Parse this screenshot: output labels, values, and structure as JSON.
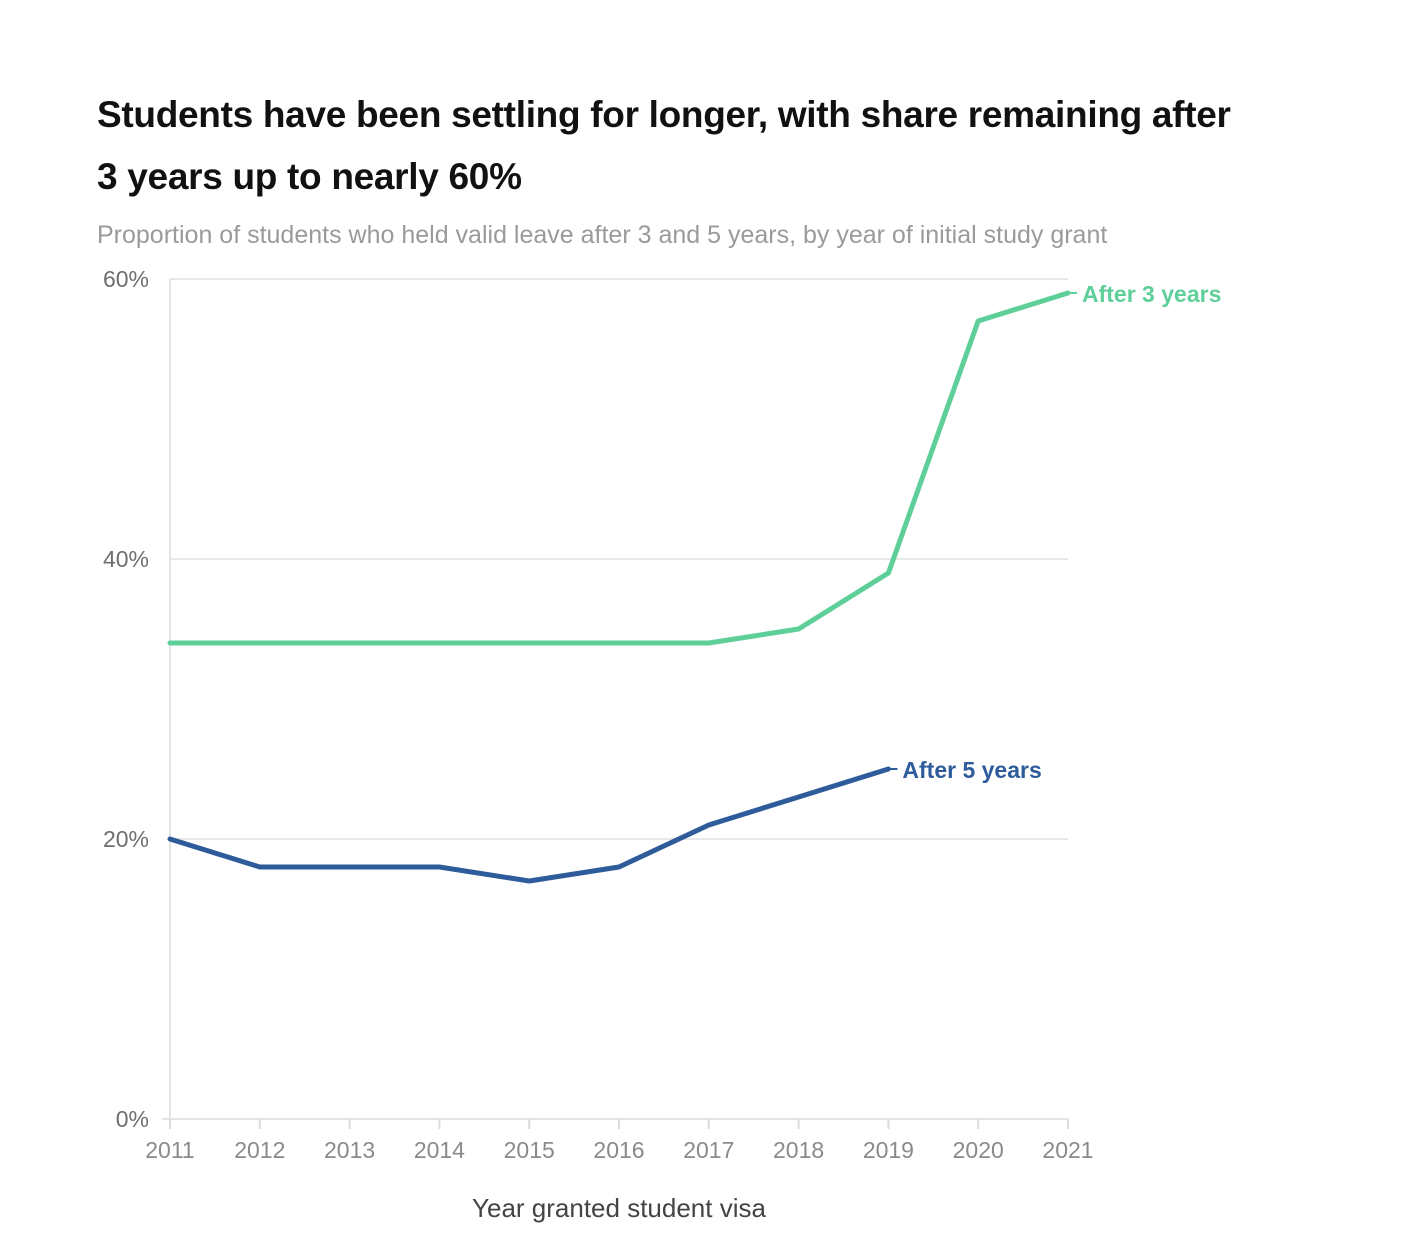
{
  "chart_data": {
    "type": "line",
    "title": "Students have been settling for longer, with share remaining after 3 years up to nearly 60%",
    "subtitle": "Proportion of students who held valid leave after 3 and 5 years, by year of initial study grant",
    "xlabel": "Year granted student visa",
    "ylabel": "",
    "x": [
      2011,
      2012,
      2013,
      2014,
      2015,
      2016,
      2017,
      2018,
      2019,
      2020,
      2021
    ],
    "x_tick_labels": [
      "2011",
      "2012",
      "2013",
      "2014",
      "2015",
      "2016",
      "2017",
      "2018",
      "2019",
      "2020",
      "2021"
    ],
    "ylim": [
      0,
      60
    ],
    "y_ticks": [
      0,
      20,
      40,
      60
    ],
    "y_tick_labels": [
      "0%",
      "20%",
      "40%",
      "60%"
    ],
    "grid": true,
    "legend": "direct labels at line ends",
    "series": [
      {
        "name": "After 3 years",
        "color": "#5fcf9a",
        "values": [
          34,
          34,
          34,
          34,
          34,
          34,
          34,
          35,
          39,
          57,
          59
        ]
      },
      {
        "name": "After 5 years",
        "color": "#2e5c9a",
        "values": [
          20,
          18,
          18,
          18,
          17,
          18,
          21,
          23,
          25,
          null,
          null
        ]
      }
    ]
  }
}
